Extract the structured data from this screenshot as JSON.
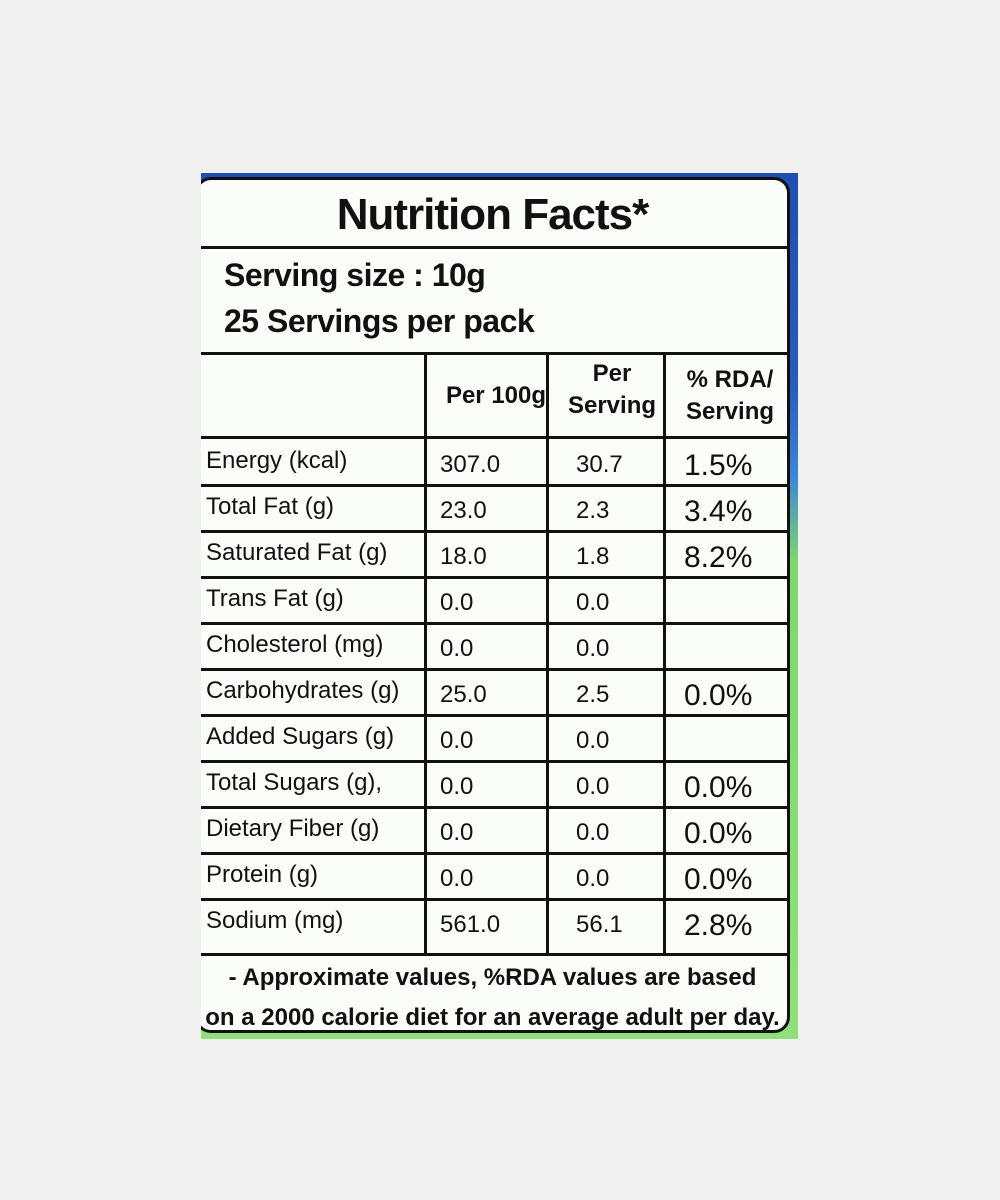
{
  "label": {
    "title": "Nutrition Facts*",
    "serving_size": "Serving size : 10g",
    "servings_per_pack": "25 Servings per pack",
    "columns": [
      "",
      "Per 100g",
      "Per Serving",
      "% RDA/ Serving"
    ],
    "columns_display": {
      "per100": "Per 100g",
      "per_serving_1": "Per",
      "per_serving_2": "Serving",
      "rda_1": "% RDA/",
      "rda_2": "Serving"
    },
    "rows": [
      {
        "name": "Energy (kcal)",
        "per100": "307.0",
        "per_serving": "30.7",
        "rda": "1.5%"
      },
      {
        "name": "Total Fat (g)",
        "per100": "23.0",
        "per_serving": "2.3",
        "rda": "3.4%"
      },
      {
        "name": "Saturated Fat (g)",
        "per100": "18.0",
        "per_serving": "1.8",
        "rda": "8.2%"
      },
      {
        "name": "Trans Fat (g)",
        "per100": "0.0",
        "per_serving": "0.0",
        "rda": ""
      },
      {
        "name": "Cholesterol (mg)",
        "per100": "0.0",
        "per_serving": "0.0",
        "rda": ""
      },
      {
        "name": "Carbohydrates (g)",
        "per100": "25.0",
        "per_serving": "2.5",
        "rda": "0.0%"
      },
      {
        "name": "Added Sugars (g)",
        "per100": "0.0",
        "per_serving": "0.0",
        "rda": ""
      },
      {
        "name": "Total Sugars (g),",
        "per100": "0.0",
        "per_serving": "0.0",
        "rda": "0.0%"
      },
      {
        "name": "Dietary Fiber (g)",
        "per100": "0.0",
        "per_serving": "0.0",
        "rda": "0.0%"
      },
      {
        "name": "Protein (g)",
        "per100": "0.0",
        "per_serving": "0.0",
        "rda": "0.0%"
      },
      {
        "name": "Sodium (mg)",
        "per100": "561.0",
        "per_serving": "56.1",
        "rda": "2.8%"
      }
    ],
    "footer_line1": "- Approximate values, %RDA values are based",
    "footer_line2": "on a 2000 calorie diet for an average adult per day."
  },
  "colors": {
    "page_background": "#f1f1f1",
    "label_background": "#fbfdfb",
    "package_blue": "#1f4fb0",
    "package_green": "#8fe07a",
    "ink": "#111111"
  }
}
